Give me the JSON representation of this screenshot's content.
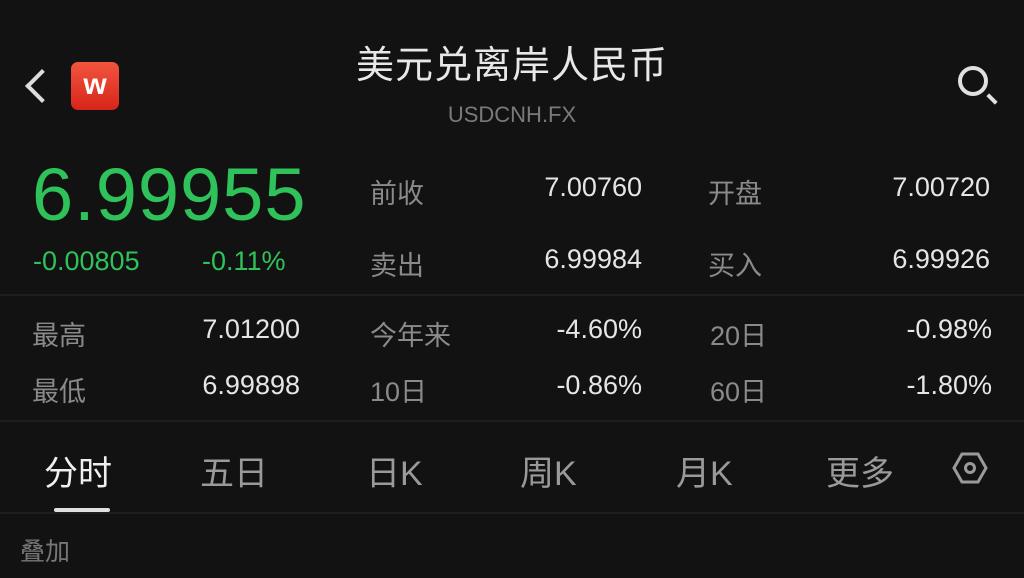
{
  "header": {
    "title": "美元兑离岸人民币",
    "symbol": "USDCNH.FX",
    "logo_text": "w",
    "logo_color": "#e0321f"
  },
  "quote": {
    "price": "6.99955",
    "change": "-0.00805",
    "change_pct": "-0.11%",
    "color": "#2fc25b"
  },
  "stats": [
    {
      "label": "前收",
      "value": "7.00760"
    },
    {
      "label": "开盘",
      "value": "7.00720"
    },
    {
      "label": "卖出",
      "value": "6.99984"
    },
    {
      "label": "买入",
      "value": "6.99926"
    },
    {
      "label": "最高",
      "value": "7.01200"
    },
    {
      "label": "今年来",
      "value": "-4.60%"
    },
    {
      "label": "20日",
      "value": "-0.98%"
    },
    {
      "label": "最低",
      "value": "6.99898"
    },
    {
      "label": "10日",
      "value": "-0.86%"
    },
    {
      "label": "60日",
      "value": "-1.80%"
    }
  ],
  "tabs": [
    {
      "label": "分时",
      "active": true
    },
    {
      "label": "五日"
    },
    {
      "label": "日K"
    },
    {
      "label": "周K"
    },
    {
      "label": "月K"
    },
    {
      "label": "更多"
    }
  ],
  "overlay_label": "叠加"
}
